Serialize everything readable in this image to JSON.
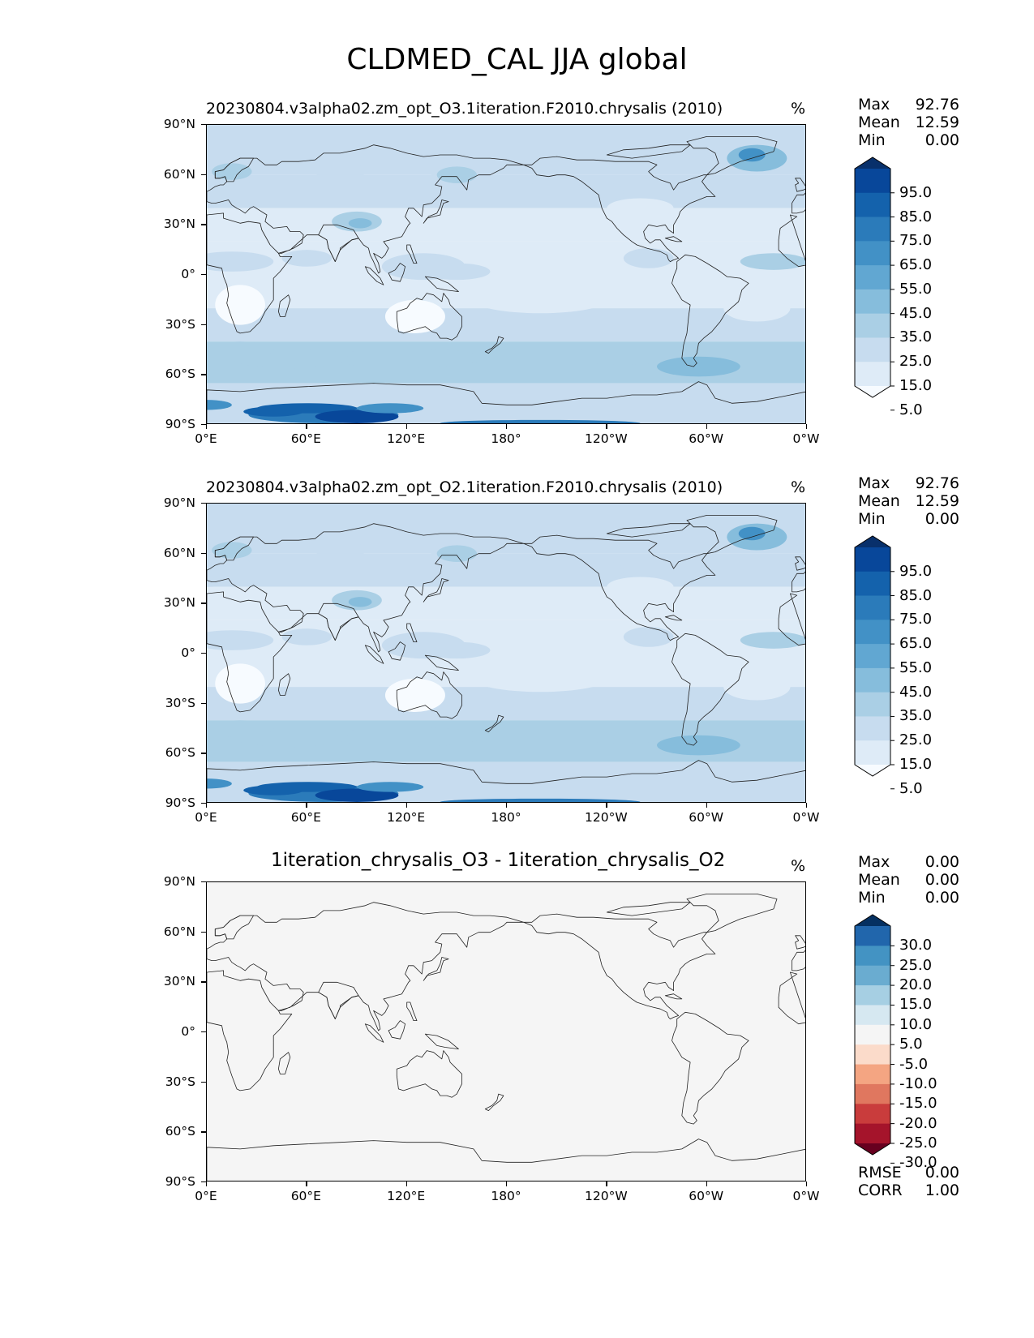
{
  "figure_title": "CLDMED_CAL JJA global",
  "axes": {
    "lat_labels": [
      "90°N",
      "60°N",
      "30°N",
      "0°",
      "30°S",
      "60°S",
      "90°S"
    ],
    "lon_labels": [
      "0°E",
      "60°E",
      "120°E",
      "180°",
      "120°W",
      "60°W",
      "0°W"
    ]
  },
  "panels": [
    {
      "title": "20230804.v3alpha02.zm_opt_O3.1iteration.F2010.chrysalis (2010)",
      "units": "%",
      "stats": [
        {
          "label": "Max",
          "value": "92.76"
        },
        {
          "label": "Mean",
          "value": "12.59"
        },
        {
          "label": "Min",
          "value": "0.00"
        }
      ],
      "field": "cloud",
      "colorbar": {
        "labels": [
          "95.0",
          "85.0",
          "75.0",
          "65.0",
          "55.0",
          "45.0",
          "35.0",
          "25.0",
          "15.0",
          "5.0"
        ],
        "colors": [
          "#08306b",
          "#08479a",
          "#1462ac",
          "#2b7bba",
          "#4291c6",
          "#61a7d2",
          "#86bddc",
          "#aacfe5",
          "#c7dcef",
          "#deebf7",
          "#f7fbff"
        ]
      }
    },
    {
      "title": "20230804.v3alpha02.zm_opt_O2.1iteration.F2010.chrysalis (2010)",
      "units": "%",
      "stats": [
        {
          "label": "Max",
          "value": "92.76"
        },
        {
          "label": "Mean",
          "value": "12.59"
        },
        {
          "label": "Min",
          "value": "0.00"
        }
      ],
      "field": "cloud",
      "colorbar": {
        "labels": [
          "95.0",
          "85.0",
          "75.0",
          "65.0",
          "55.0",
          "45.0",
          "35.0",
          "25.0",
          "15.0",
          "5.0"
        ],
        "colors": [
          "#08306b",
          "#08479a",
          "#1462ac",
          "#2b7bba",
          "#4291c6",
          "#61a7d2",
          "#86bddc",
          "#aacfe5",
          "#c7dcef",
          "#deebf7",
          "#f7fbff"
        ]
      }
    },
    {
      "title": "1iteration_chrysalis_O3 - 1iteration_chrysalis_O2",
      "units": "%",
      "stats": [
        {
          "label": "Max",
          "value": "0.00"
        },
        {
          "label": "Mean",
          "value": "0.00"
        },
        {
          "label": "Min",
          "value": "0.00"
        }
      ],
      "field": "zero",
      "colorbar": {
        "labels": [
          "30.0",
          "25.0",
          "20.0",
          "15.0",
          "10.0",
          "5.0",
          "-5.0",
          "-10.0",
          "-15.0",
          "-20.0",
          "-25.0",
          "-30.0"
        ],
        "colors": [
          "#053061",
          "#2166ac",
          "#4393c3",
          "#6aacd0",
          "#a6cfe3",
          "#d6e8f1",
          "#f5f5f5",
          "#fbdbca",
          "#f4a582",
          "#e0775f",
          "#c93c3c",
          "#a5142b",
          "#67001f"
        ]
      },
      "extra_stats": [
        {
          "label": "RMSE",
          "value": "0.00"
        },
        {
          "label": "CORR",
          "value": "1.00"
        }
      ]
    }
  ]
}
